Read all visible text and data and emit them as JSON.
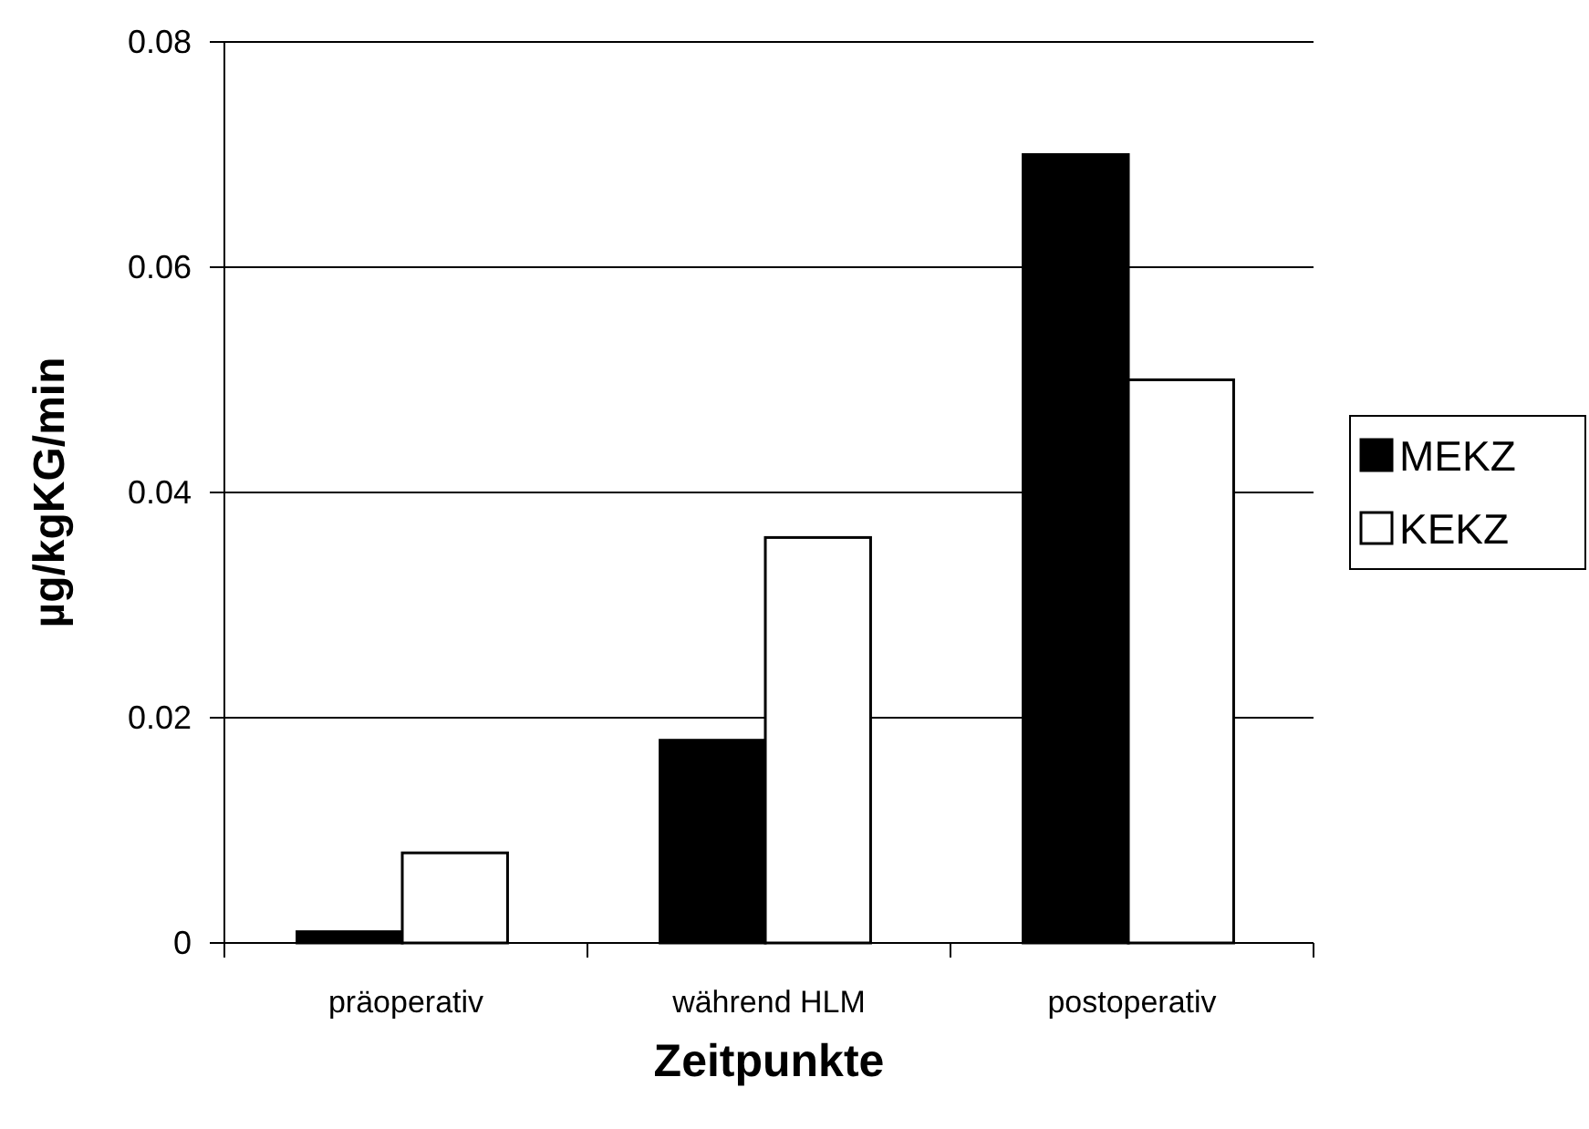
{
  "chart_data": {
    "type": "bar",
    "xlabel": "Zeitpunkte",
    "ylabel": "µg/kgKG/min",
    "categories": [
      "präoperativ",
      "während HLM",
      "postoperativ"
    ],
    "series": [
      {
        "name": "MEKZ",
        "color": "#000000",
        "values": [
          0.001,
          0.018,
          0.07
        ]
      },
      {
        "name": "KEKZ",
        "color": "#ffffff",
        "values": [
          0.008,
          0.036,
          0.05
        ]
      }
    ],
    "ylim": [
      0,
      0.08
    ],
    "yticks": [
      0,
      0.02,
      0.04,
      0.06,
      0.08
    ],
    "grid": "y",
    "legend": "right"
  }
}
